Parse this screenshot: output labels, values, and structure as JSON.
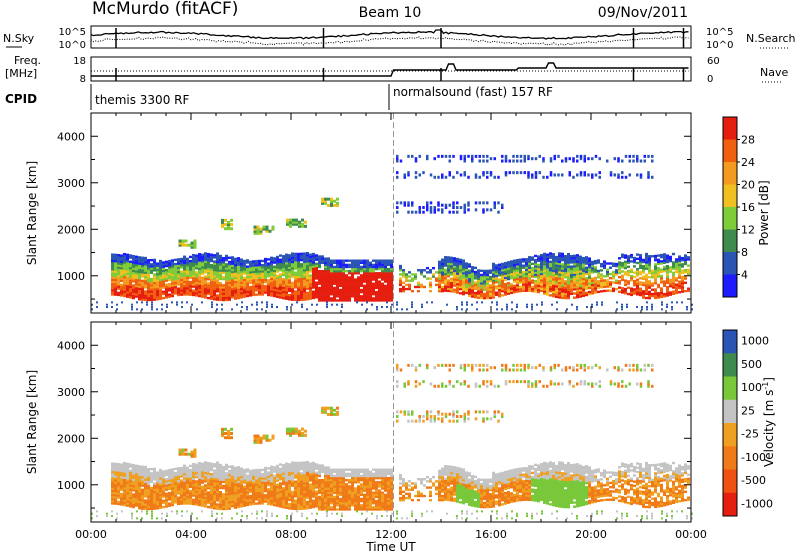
{
  "header": {
    "station": "McMurdo (fitACF)",
    "beam": "Beam 10",
    "date": "09/Nov/2011"
  },
  "strip_sky": {
    "left_label": "N.Sky",
    "left_ticks": [
      "10^5",
      "10^0"
    ],
    "right_label": "N.Search",
    "right_ticks": [
      "10^5",
      "10^0"
    ]
  },
  "strip_freq": {
    "left_label_1": "Freq.",
    "left_label_2": "[MHz]",
    "left_ticks": [
      "18",
      "8"
    ],
    "right_label": "Nave",
    "right_ticks": [
      "60",
      "0"
    ]
  },
  "cpid": {
    "label": "CPID",
    "mode_1": "themis 3300 RF",
    "mode_2": "normalsound (fast) 157 RF"
  },
  "colors": {
    "power": [
      "#1c1cff",
      "#2b55b5",
      "#3f8a4f",
      "#7fcc3a",
      "#f0c020",
      "#f59a20",
      "#f06010",
      "#e61e10"
    ],
    "velocity": [
      "#2040c8",
      "#2b55b5",
      "#3f8a4f",
      "#79c83a",
      "#c4c4c4",
      "#f0a020",
      "#f07a18",
      "#f05010",
      "#e61e10"
    ]
  },
  "chart_data": [
    {
      "type": "heatmap",
      "panel": "power",
      "ylabel": "Slant Range [km]",
      "yticks": [
        "1000",
        "2000",
        "3000",
        "4000"
      ],
      "ylim": [
        200,
        4500
      ],
      "xlim_hours": [
        0,
        24
      ],
      "colorbar_label": "Power [dB]",
      "colorbar_ticks": [
        "4",
        "8",
        "12",
        "16",
        "20",
        "24",
        "28"
      ],
      "colorbar_range": [
        0,
        32
      ]
    },
    {
      "type": "heatmap",
      "panel": "velocity",
      "ylabel": "Slant Range [km]",
      "yticks": [
        "1000",
        "2000",
        "3000",
        "4000"
      ],
      "ylim": [
        200,
        4500
      ],
      "xlim_hours": [
        0,
        24
      ],
      "xticks": [
        "00:00",
        "04:00",
        "08:00",
        "12:00",
        "16:00",
        "20:00",
        "00:00"
      ],
      "xlabel": "Time UT",
      "colorbar_label": "Velocity [m s",
      "colorbar_label_sup": "-1",
      "colorbar_label_end": "]",
      "colorbar_ticks": [
        "1000",
        "500",
        "100",
        "25",
        "-25",
        "-100",
        "-500",
        "-1000"
      ]
    }
  ]
}
